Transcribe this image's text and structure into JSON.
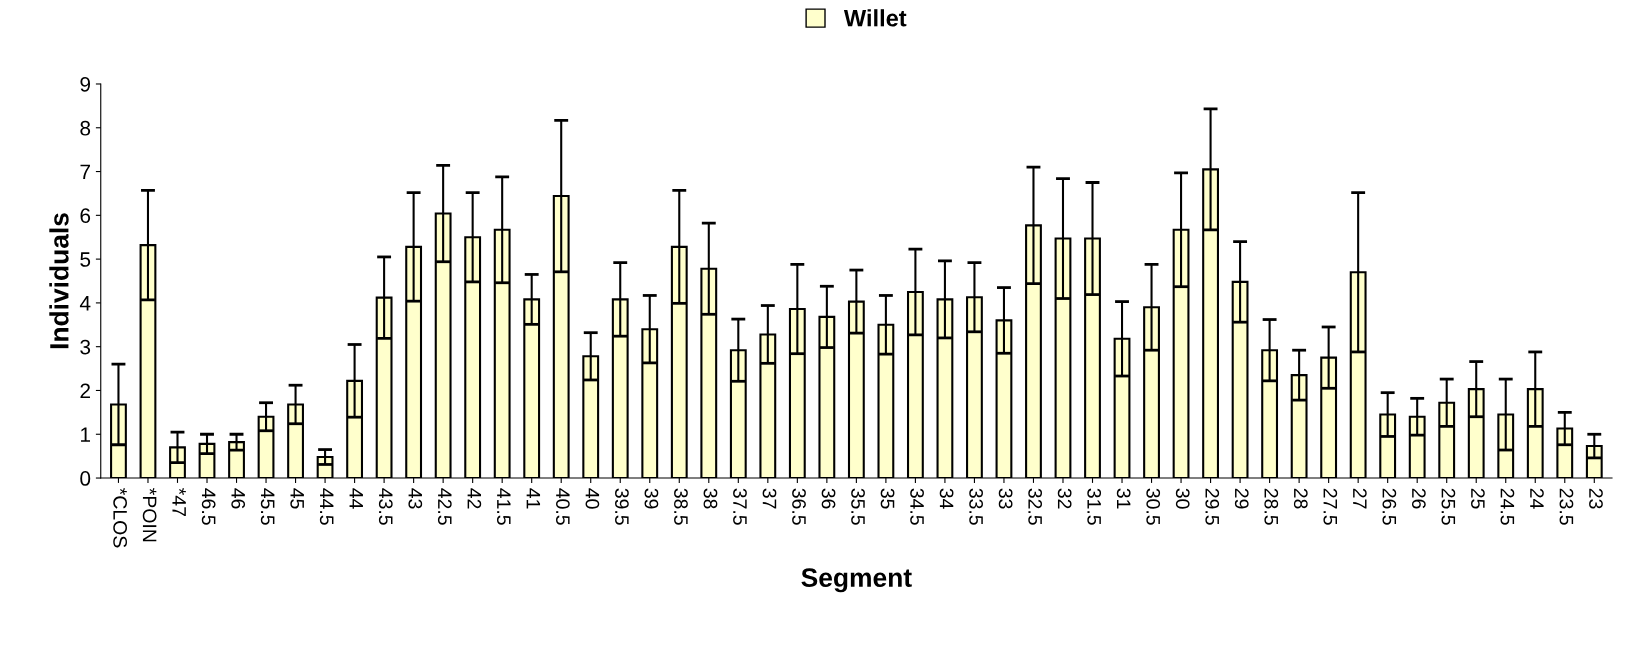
{
  "chart_data": {
    "type": "bar",
    "xlabel": "Segment",
    "ylabel": "Individuals",
    "categories": [
      "*CLOS",
      "*POIN",
      "*47",
      "46.5",
      "46",
      "45.5",
      "45",
      "44.5",
      "44",
      "43.5",
      "43",
      "42.5",
      "42",
      "41.5",
      "41",
      "40.5",
      "40",
      "39.5",
      "39",
      "38.5",
      "38",
      "37.5",
      "37",
      "36.5",
      "36",
      "35.5",
      "35",
      "34.5",
      "34",
      "33.5",
      "33",
      "32.5",
      "32",
      "31.5",
      "31",
      "30.5",
      "30",
      "29.5",
      "29",
      "28.5",
      "28",
      "27.5",
      "27",
      "26.5",
      "26",
      "25.5",
      "25",
      "24.5",
      "24",
      "23.5",
      "23"
    ],
    "series": [
      {
        "name": "Willet",
        "color": "#ffffcc",
        "values": [
          1.68,
          5.32,
          0.7,
          0.78,
          0.82,
          1.4,
          1.68,
          0.48,
          2.22,
          4.12,
          5.28,
          6.04,
          5.5,
          5.67,
          4.08,
          6.44,
          2.78,
          4.08,
          3.4,
          5.28,
          4.78,
          2.92,
          3.28,
          3.86,
          3.68,
          4.03,
          3.5,
          4.25,
          4.08,
          4.13,
          3.6,
          5.77,
          5.47,
          5.47,
          3.18,
          3.9,
          5.67,
          7.05,
          4.48,
          2.92,
          2.35,
          2.75,
          4.7,
          1.45,
          1.4,
          1.72,
          2.03,
          1.45,
          2.03,
          1.13,
          0.73
        ],
        "errors": [
          0.92,
          1.25,
          0.35,
          0.22,
          0.18,
          0.32,
          0.44,
          0.17,
          0.83,
          0.93,
          1.24,
          1.1,
          1.02,
          1.21,
          0.57,
          1.73,
          0.54,
          0.84,
          0.77,
          1.29,
          1.04,
          0.71,
          0.66,
          1.02,
          0.7,
          0.72,
          0.67,
          0.98,
          0.88,
          0.79,
          0.75,
          1.33,
          1.37,
          1.28,
          0.85,
          0.98,
          1.3,
          1.38,
          0.92,
          0.7,
          0.57,
          0.7,
          1.82,
          0.5,
          0.42,
          0.54,
          0.63,
          0.81,
          0.85,
          0.37,
          0.27
        ]
      }
    ],
    "ylim": [
      0,
      9
    ],
    "yticks": [
      0,
      1,
      2,
      3,
      4,
      5,
      6,
      7,
      8,
      9
    ],
    "grid": false,
    "legend": "top"
  }
}
